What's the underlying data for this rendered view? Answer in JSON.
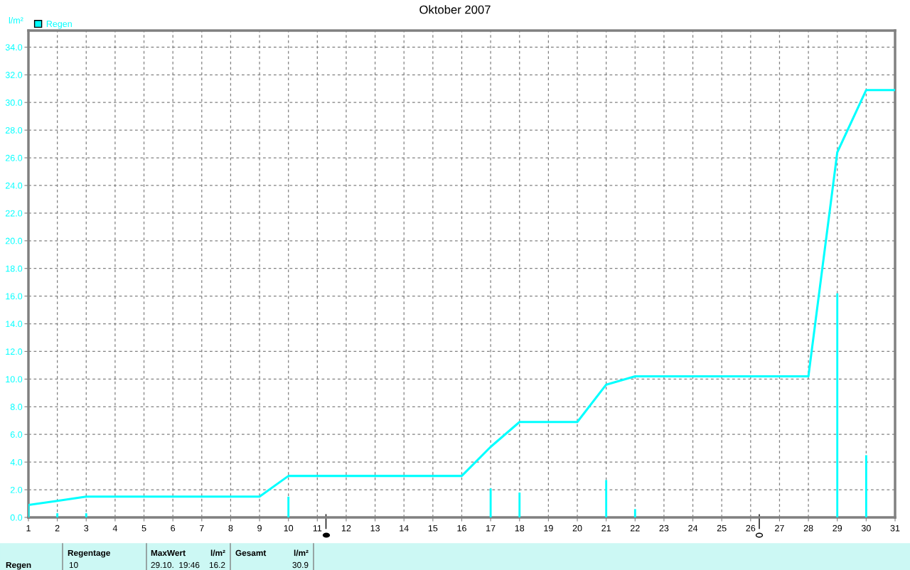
{
  "chart_data": {
    "type": "line",
    "title": "Oktober 2007",
    "ylabel": "l/m²",
    "xlim": [
      1,
      31
    ],
    "xticks": [
      1,
      2,
      3,
      4,
      5,
      6,
      7,
      8,
      9,
      10,
      11,
      12,
      13,
      14,
      15,
      16,
      17,
      18,
      19,
      20,
      21,
      22,
      23,
      24,
      25,
      26,
      27,
      28,
      29,
      30,
      31
    ],
    "ylim": [
      0,
      35.2
    ],
    "yticks": [
      {
        "value": 0,
        "label": "0.0"
      },
      {
        "value": 2,
        "label": "2.0"
      },
      {
        "value": 4,
        "label": "4.0"
      },
      {
        "value": 6,
        "label": "6.0"
      },
      {
        "value": 8,
        "label": "8.0"
      },
      {
        "value": 10,
        "label": "10.0"
      },
      {
        "value": 12,
        "label": "12.0"
      },
      {
        "value": 14,
        "label": "14.0"
      },
      {
        "value": 16,
        "label": "16.0"
      },
      {
        "value": 18,
        "label": "18.0"
      },
      {
        "value": 20,
        "label": "20.0"
      },
      {
        "value": 22,
        "label": "22.0"
      },
      {
        "value": 24,
        "label": "24.0"
      },
      {
        "value": 26,
        "label": "26.0"
      },
      {
        "value": 28,
        "label": "28.0"
      },
      {
        "value": 30,
        "label": "30.0"
      },
      {
        "value": 32,
        "label": "32.0"
      },
      {
        "value": 34,
        "label": "34.0"
      }
    ],
    "grid": true,
    "legend": "top left",
    "line_style": "solid",
    "marker": "none",
    "series": [
      {
        "name": "Regen",
        "type": "bar",
        "color": "#00ffff",
        "x": [
          1,
          2,
          3,
          10,
          17,
          18,
          21,
          22,
          29,
          30
        ],
        "values": [
          0.9,
          0.3,
          0.3,
          1.5,
          2.1,
          1.8,
          2.7,
          0.6,
          16.2,
          4.5
        ]
      },
      {
        "color": "#00ffff",
        "x": [
          1,
          2,
          3,
          9,
          10,
          16,
          17,
          18,
          20,
          21,
          22,
          28,
          29,
          30,
          31
        ],
        "values": [
          0.9,
          1.2,
          1.5,
          1.5,
          3.0,
          3.0,
          5.1,
          6.9,
          6.9,
          9.6,
          10.2,
          10.2,
          26.4,
          30.9,
          30.9
        ]
      }
    ],
    "annotations": [
      "Regen",
      "Regentage",
      "10",
      "MaxWert",
      "l/m²",
      "29.10.  19:46",
      "16.2",
      "Gesamt",
      "l/m²",
      "30.9"
    ]
  }
}
